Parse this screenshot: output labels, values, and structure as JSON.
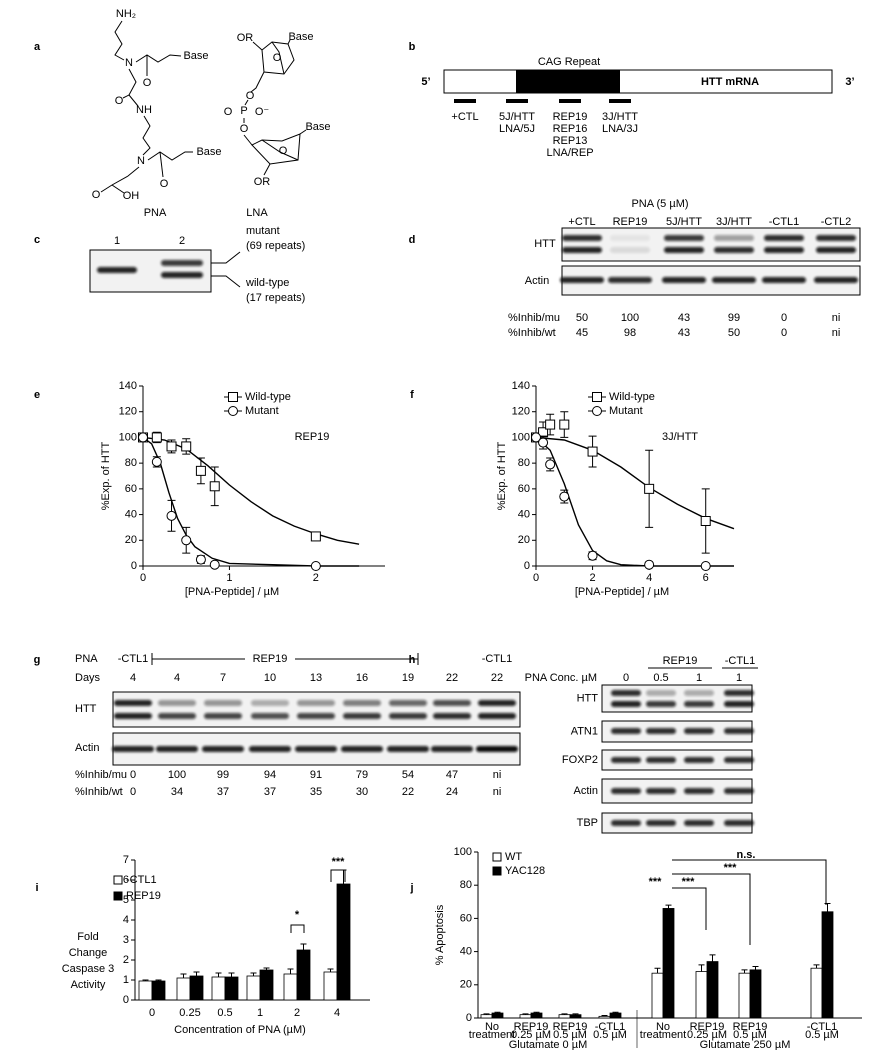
{
  "panel_labels": [
    "a",
    "b",
    "c",
    "d",
    "e",
    "f",
    "g",
    "h",
    "i",
    "j"
  ],
  "panel_a": {
    "pna_labels": [
      "NH₂",
      "N",
      "Base",
      "O",
      "O",
      "NH",
      "N",
      "Base",
      "O",
      "O",
      "OH"
    ],
    "pna_name": "PNA",
    "lna_labels": [
      "OR",
      "Base",
      "O",
      "O",
      "P",
      "O",
      "O⁻",
      "O",
      "Base",
      "O",
      "OR"
    ],
    "lna_name": "LNA"
  },
  "panel_b": {
    "repeat_label": "CAG Repeat",
    "five_end": "5’",
    "three_end": "3’",
    "mrna": "HTT mRNA",
    "probes": [
      [
        "+CTL"
      ],
      [
        "5J/HTT",
        "LNA/5J"
      ],
      [
        "REP19",
        "REP16",
        "REP13",
        "LNA/REP"
      ],
      [
        "3J/HTT",
        "LNA/3J"
      ]
    ]
  },
  "panel_c": {
    "lanes": [
      "1",
      "2"
    ],
    "mutant": [
      "mutant",
      "(69 repeats)"
    ],
    "wildtype": [
      "wild-type",
      "(17 repeats)"
    ]
  },
  "panel_d": {
    "header": "PNA (5 µM)",
    "lanes": [
      "+CTL",
      "REP19",
      "5J/HTT",
      "3J/HTT",
      "-CTL1",
      "-CTL2"
    ],
    "blots": [
      "HTT",
      "Actin"
    ],
    "rows": [
      {
        "label": "%Inhib/mu",
        "values": [
          50,
          100,
          43,
          99,
          0,
          "ni"
        ]
      },
      {
        "label": "%Inhib/wt",
        "values": [
          45,
          98,
          43,
          50,
          0,
          "ni"
        ]
      }
    ]
  },
  "panel_g": {
    "pna_label": "PNA",
    "pna_groups": [
      "-CTL1",
      "REP19",
      "-CTL1"
    ],
    "days_label": "Days",
    "days": [
      4,
      4,
      7,
      10,
      13,
      16,
      19,
      22,
      22
    ],
    "blots": [
      "HTT",
      "Actin"
    ],
    "rows": [
      {
        "label": "%Inhib/mu",
        "values": [
          0,
          100,
          99,
          94,
          91,
          79,
          54,
          47,
          "ni"
        ]
      },
      {
        "label": "%Inhib/wt",
        "values": [
          0,
          34,
          37,
          37,
          35,
          30,
          22,
          24,
          "ni"
        ]
      }
    ]
  },
  "panel_h": {
    "conc_label": "PNA Conc. µM",
    "groups": [
      "REP19",
      "-CTL1"
    ],
    "concentrations": [
      0,
      0.5,
      1,
      1
    ],
    "blots": [
      "HTT",
      "ATN1",
      "FOXP2",
      "Actin",
      "TBP"
    ]
  },
  "chart_data": [
    {
      "type": "line",
      "ylabel": "%Exp. of HTT",
      "xlabel": "[PNA-Peptide] / µM",
      "annotation": "REP19",
      "xlim": [
        0,
        2.8
      ],
      "xticks": [
        0,
        1,
        2
      ],
      "ylim": [
        0,
        140
      ],
      "yticks": [
        0,
        20,
        40,
        60,
        80,
        100,
        120,
        140
      ],
      "series": [
        {
          "name": "Wild-type",
          "marker": "square",
          "color": "#000000",
          "x": [
            0,
            0.16,
            0.33,
            0.5,
            0.67,
            0.83,
            2
          ],
          "values": [
            100,
            100,
            93,
            93,
            74,
            62,
            23
          ],
          "errors": [
            0,
            4,
            5,
            6,
            10,
            15,
            2
          ],
          "fit_x": [
            0,
            0.25,
            0.5,
            0.75,
            1,
            1.25,
            1.5,
            1.75,
            2,
            2.25,
            2.5
          ],
          "fit_values": [
            100,
            98,
            91,
            78,
            63,
            50,
            39,
            31,
            25,
            20,
            17
          ]
        },
        {
          "name": "Mutant",
          "marker": "circle",
          "color": "#000000",
          "x": [
            0,
            0.16,
            0.33,
            0.5,
            0.67,
            0.83,
            2
          ],
          "values": [
            100,
            81,
            39,
            20,
            5,
            1,
            0
          ],
          "errors": [
            0,
            4,
            12,
            10,
            3,
            1,
            1
          ],
          "fit_x": [
            0,
            0.1,
            0.2,
            0.3,
            0.4,
            0.5,
            0.6,
            0.8,
            1,
            1.5,
            2,
            2.5
          ],
          "fit_values": [
            100,
            95,
            80,
            57,
            37,
            24,
            15,
            6,
            2,
            1,
            0,
            0
          ]
        }
      ]
    },
    {
      "type": "line",
      "ylabel": "%Exp. of HTT",
      "xlabel": "[PNA-Peptide] / µM",
      "annotation": "3J/HTT",
      "xlim": [
        0,
        7
      ],
      "xticks": [
        0,
        2,
        4,
        6
      ],
      "ylim": [
        0,
        140
      ],
      "yticks": [
        0,
        20,
        40,
        60,
        80,
        100,
        120,
        140
      ],
      "series": [
        {
          "name": "Wild-type",
          "marker": "square",
          "color": "#000000",
          "x": [
            0,
            0.25,
            0.5,
            1,
            2,
            4,
            6
          ],
          "values": [
            100,
            104,
            110,
            110,
            89,
            60,
            35
          ],
          "errors": [
            0,
            8,
            8,
            10,
            12,
            30,
            25
          ],
          "fit_x": [
            0,
            1,
            2,
            3,
            4,
            5,
            6,
            7
          ],
          "fit_values": [
            100,
            98,
            90,
            77,
            61,
            48,
            37,
            29
          ]
        },
        {
          "name": "Mutant",
          "marker": "circle",
          "color": "#000000",
          "x": [
            0,
            0.25,
            0.5,
            1,
            2,
            4,
            6
          ],
          "values": [
            100,
            96,
            79,
            54,
            8,
            1,
            0
          ],
          "errors": [
            0,
            5,
            5,
            5,
            3,
            1,
            1
          ],
          "fit_x": [
            0,
            0.5,
            1,
            1.5,
            2,
            2.5,
            3,
            4,
            5,
            6,
            7
          ],
          "fit_values": [
            100,
            90,
            64,
            32,
            12,
            4,
            1,
            0,
            0,
            0,
            0
          ]
        }
      ]
    },
    {
      "type": "bar",
      "ylabel": [
        "Fold",
        "Change",
        "Caspase 3",
        "Activity"
      ],
      "xlabel": "Concentration of PNA (µM)",
      "categories": [
        "0",
        "0.25",
        "0.5",
        "1",
        "2",
        "4"
      ],
      "ylim": [
        0,
        7
      ],
      "yticks": [
        0,
        1,
        2,
        3,
        4,
        5,
        6,
        7
      ],
      "series": [
        {
          "name": "-CTL1",
          "color": "#ffffff",
          "values": [
            0.95,
            1.1,
            1.15,
            1.2,
            1.3,
            1.4
          ],
          "errors": [
            0.05,
            0.2,
            0.2,
            0.15,
            0.25,
            0.15
          ]
        },
        {
          "name": "REP19",
          "color": "#000000",
          "values": [
            0.95,
            1.2,
            1.15,
            1.5,
            2.5,
            5.8
          ],
          "errors": [
            0.05,
            0.2,
            0.2,
            0.1,
            0.3,
            0.7
          ]
        }
      ],
      "annotations": [
        "*",
        "***"
      ]
    },
    {
      "type": "bar",
      "ylabel": "% Apoptosis",
      "categories": [
        "No",
        "REP19",
        "REP19",
        "-CTL1",
        "No",
        "REP19",
        "REP19",
        "-CTL1"
      ],
      "category_sublabels": [
        "treatment",
        "0.25 µM",
        "0.5 µM",
        "0.5 µM",
        "treatment",
        "0.25 µM",
        "0.5 µM",
        "0.5 µM"
      ],
      "group_labels": [
        "Glutamate 0  µM",
        "Glutamate 250  µM"
      ],
      "ylim": [
        0,
        100
      ],
      "yticks": [
        0,
        20,
        40,
        60,
        80,
        100
      ],
      "series": [
        {
          "name": "WT",
          "color": "#ffffff",
          "values": [
            2,
            2,
            2,
            1,
            27,
            28,
            27,
            30
          ],
          "errors": [
            0.5,
            0.5,
            0.5,
            0.5,
            3,
            4,
            2,
            2
          ]
        },
        {
          "name": "YAC128",
          "color": "#000000",
          "values": [
            3,
            3,
            2,
            3,
            66,
            34,
            29,
            64
          ],
          "errors": [
            0.5,
            0.5,
            0.5,
            0.5,
            2,
            4,
            2,
            5
          ]
        }
      ],
      "annotations": [
        "***",
        "***",
        "***",
        "n.s."
      ]
    }
  ]
}
